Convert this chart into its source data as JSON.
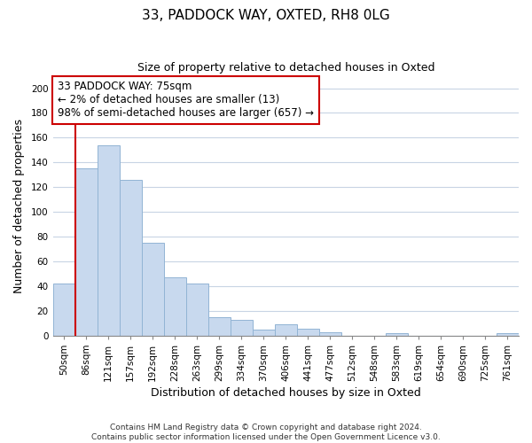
{
  "title": "33, PADDOCK WAY, OXTED, RH8 0LG",
  "subtitle": "Size of property relative to detached houses in Oxted",
  "xlabel": "Distribution of detached houses by size in Oxted",
  "ylabel": "Number of detached properties",
  "bar_labels": [
    "50sqm",
    "86sqm",
    "121sqm",
    "157sqm",
    "192sqm",
    "228sqm",
    "263sqm",
    "299sqm",
    "334sqm",
    "370sqm",
    "406sqm",
    "441sqm",
    "477sqm",
    "512sqm",
    "548sqm",
    "583sqm",
    "619sqm",
    "654sqm",
    "690sqm",
    "725sqm",
    "761sqm"
  ],
  "bar_values": [
    42,
    135,
    154,
    126,
    75,
    47,
    42,
    15,
    13,
    5,
    9,
    6,
    3,
    0,
    0,
    2,
    0,
    0,
    0,
    0,
    2
  ],
  "bar_color": "#c8d9ee",
  "bar_edge_color": "#92b4d4",
  "ylim": [
    0,
    210
  ],
  "yticks": [
    0,
    20,
    40,
    60,
    80,
    100,
    120,
    140,
    160,
    180,
    200
  ],
  "annotation_title": "33 PADDOCK WAY: 75sqm",
  "annotation_line1": "← 2% of detached houses are smaller (13)",
  "annotation_line2": "98% of semi-detached houses are larger (657) →",
  "footer_line1": "Contains HM Land Registry data © Crown copyright and database right 2024.",
  "footer_line2": "Contains public sector information licensed under the Open Government Licence v3.0.",
  "background_color": "#ffffff",
  "grid_color": "#c8d4e4",
  "red_line_color": "#cc0000",
  "annotation_box_color": "#cc0000",
  "title_fontsize": 11,
  "subtitle_fontsize": 9,
  "xlabel_fontsize": 9,
  "ylabel_fontsize": 9,
  "tick_fontsize": 7.5,
  "footer_fontsize": 6.5
}
